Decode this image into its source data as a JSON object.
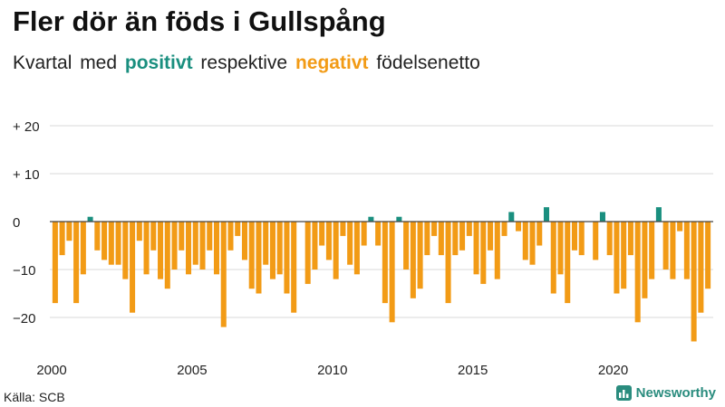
{
  "header": {
    "title": "Fler dör än föds i Gullspång",
    "subtitle_pre": "Kvartal med",
    "subtitle_pos": "positivt",
    "subtitle_mid": "respektive",
    "subtitle_neg": "negativt",
    "subtitle_post": "födelsenetto"
  },
  "footer": {
    "source": "Källa: SCB",
    "brand": "Newsworthy"
  },
  "colors": {
    "positive": "#1a8f7f",
    "negative": "#f29b16",
    "grid": "#d9d9d9",
    "zero_line": "#444444",
    "text": "#222222"
  },
  "icons": {
    "brand_logo": "bar-chart-logo-icon"
  },
  "chart_data": {
    "type": "bar",
    "title": "Fler dör än föds i Gullspång",
    "xlabel": "",
    "ylabel": "",
    "ylim": [
      -27,
      22
    ],
    "x_start": 2000,
    "periods_per_year": 4,
    "yticks": [
      20,
      10,
      0,
      -10,
      -20
    ],
    "ytick_labels": [
      "+ 20",
      "+ 10",
      "0",
      "−10",
      "−20"
    ],
    "xticks": [
      2000,
      2005,
      2010,
      2015,
      2020
    ],
    "xtick_labels": [
      "2000",
      "2005",
      "2010",
      "2015",
      "2020"
    ],
    "grid": true,
    "values": [
      -17,
      -7,
      -4,
      -17,
      -11,
      1,
      -6,
      -8,
      -9,
      -9,
      -12,
      -19,
      -4,
      -11,
      -6,
      -12,
      -14,
      -10,
      -6,
      -11,
      -9,
      -10,
      -6,
      -11,
      -22,
      -6,
      -3,
      -8,
      -14,
      -15,
      -9,
      -12,
      -11,
      -15,
      -19,
      0,
      -13,
      -10,
      -5,
      -8,
      -12,
      -3,
      -9,
      -11,
      -5,
      1,
      -5,
      -17,
      -21,
      1,
      -10,
      -16,
      -14,
      -7,
      -3,
      -7,
      -17,
      -7,
      -6,
      -3,
      -11,
      -13,
      -6,
      -12,
      -3,
      2,
      -2,
      -8,
      -9,
      -5,
      3,
      -15,
      -11,
      -17,
      -6,
      -7,
      0,
      -8,
      2,
      -7,
      -15,
      -14,
      -7,
      -21,
      -16,
      -12,
      3,
      -10,
      -12,
      -2,
      -12,
      -25,
      -19,
      -14
    ]
  }
}
